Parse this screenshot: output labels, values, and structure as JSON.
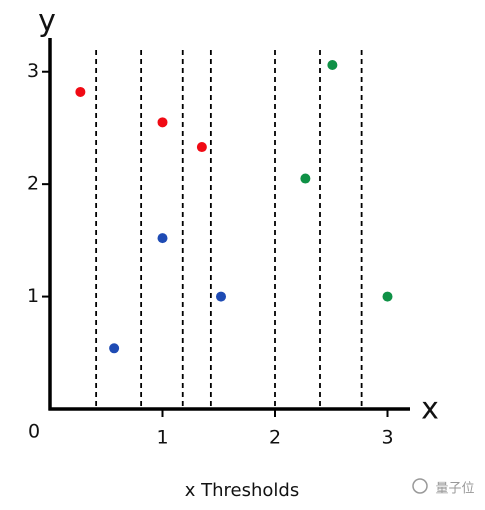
{
  "chart_data": {
    "type": "scatter",
    "y_label": "y",
    "x_label": "x",
    "caption": "x Thresholds",
    "watermark": "量子位",
    "xlim": [
      0,
      3.2
    ],
    "ylim": [
      0,
      3.3
    ],
    "xticks": [
      0,
      1,
      2,
      3
    ],
    "yticks": [
      1,
      2,
      3
    ],
    "thresholds": [
      0.41,
      0.81,
      1.18,
      1.43,
      2.0,
      2.4,
      2.77
    ],
    "series": [
      {
        "color": "#f00a14",
        "x": [
          0.27,
          1.0,
          1.35
        ],
        "y": [
          2.82,
          2.55,
          2.33
        ]
      },
      {
        "color": "#1e4bb4",
        "x": [
          0.57,
          1.0,
          1.52
        ],
        "y": [
          0.54,
          1.52,
          1.0
        ]
      },
      {
        "color": "#0f9146",
        "x": [
          2.27,
          2.51,
          3.0
        ],
        "y": [
          2.05,
          3.06,
          1.0
        ]
      }
    ]
  }
}
